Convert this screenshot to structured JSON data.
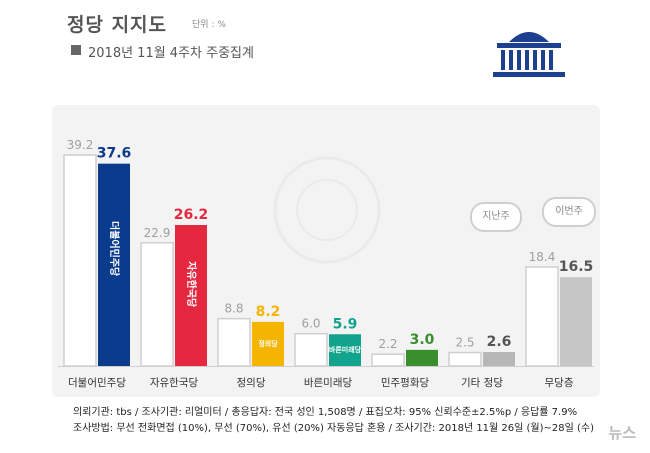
{
  "header": {
    "title": "정당 지지도",
    "unit": "단위 : %",
    "subtitle": "2018년 11월 4주차 주중집계"
  },
  "chart_data": {
    "type": "bar",
    "categories": [
      "더불어민주당",
      "자유한국당",
      "정의당",
      "바른미래당",
      "민주평화당",
      "기타 정당",
      "무당층"
    ],
    "series": [
      {
        "values": [
          39.2,
          22.9,
          8.8,
          6.0,
          2.2,
          2.5,
          18.4
        ],
        "labels": [
          "39.2",
          "22.9",
          "8.8",
          "6.0",
          "2.2",
          "2.5",
          "18.4"
        ]
      },
      {
        "values": [
          37.6,
          26.2,
          8.2,
          5.9,
          3.0,
          2.6,
          16.5
        ],
        "labels": [
          "37.6",
          "26.2",
          "8.2",
          "5.9",
          "3.0",
          "2.6",
          "16.5"
        ]
      }
    ],
    "colors": {
      "previous": "#ffffff",
      "current": [
        "#0a3b8c",
        "#e5273f",
        "#f5b400",
        "#12a38c",
        "#3a8f2c",
        "#b7b7b7",
        "#c6c6c6"
      ],
      "current_label": [
        "#0a3b8c",
        "#e5273f",
        "#f5b400",
        "#12a38c",
        "#3a8f2c",
        "#555555",
        "#555555"
      ]
    },
    "bar_logos": [
      "더불어민주당",
      "자유한국당",
      "정의당",
      "바른미래당",
      "",
      "",
      ""
    ],
    "bubbles": {
      "previous": "지난주",
      "current": "이번주"
    },
    "ylim": [
      0,
      42
    ]
  },
  "footnotes": {
    "line1": "의뢰기관: tbs / 조사기관: 리얼미터 / 총응답자: 전국 성인 1,508명 / 표집오차: 95% 신뢰수준±2.5%p / 응답률 7.9%",
    "line2": "조사방법: 무선 전화면접 (10%), 무선 (70%), 유선 (20%) 자동응답 혼용 / 조사기간: 2018년 11월 26일 (월)~28일 (수)"
  },
  "watermark": "뉴스"
}
